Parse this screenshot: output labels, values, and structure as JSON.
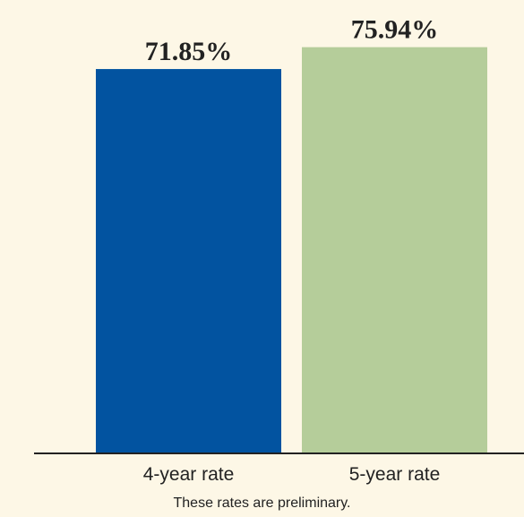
{
  "chart_data": {
    "type": "bar",
    "categories": [
      "4-year rate",
      "5-year rate"
    ],
    "values": [
      71.85,
      75.94
    ],
    "value_labels": [
      "71.85%",
      "75.94%"
    ],
    "colors": [
      "#0253a0",
      "#b5cd9a"
    ],
    "ylim": [
      0,
      80
    ],
    "grid": false,
    "note": "These rates are preliminary."
  }
}
